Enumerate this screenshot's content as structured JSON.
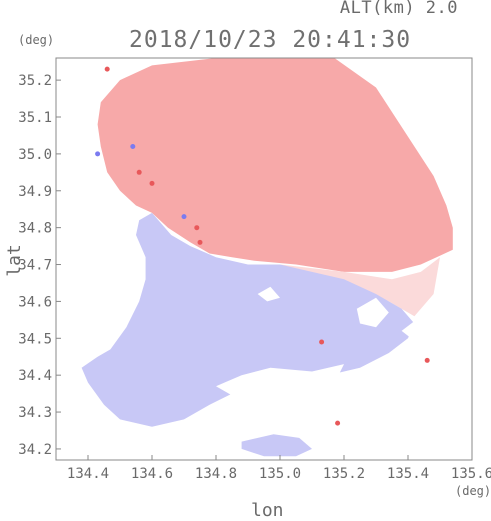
{
  "chart_data": {
    "type": "heatmap",
    "title": "2018/10/23 20:41:30",
    "subtitle": "ALT(km) 2.0",
    "xlabel": "lon",
    "ylabel": "lat",
    "xunit": "(deg)",
    "yunit": "(deg)",
    "xlim": [
      134.3,
      135.6
    ],
    "ylim": [
      34.17,
      35.26
    ],
    "xticks": [
      "134.4",
      "134.6",
      "134.8",
      "135.0",
      "135.2",
      "135.4",
      "135.6"
    ],
    "yticks": [
      "34.2",
      "34.3",
      "34.4",
      "34.5",
      "34.6",
      "34.7",
      "34.8",
      "34.9",
      "35.0",
      "35.1",
      "35.2"
    ],
    "colors": {
      "positive": "#f7a9a9",
      "weak_positive": "#fbdada",
      "negative": "#c8c8f6",
      "weak_negative": "#e4e4fb",
      "strong_positive": "#e8585a",
      "strong_negative": "#7b7bf0"
    },
    "regions": [
      {
        "sign": "positive",
        "polygon": [
          [
            134.44,
            35.14
          ],
          [
            134.5,
            35.2
          ],
          [
            134.6,
            35.24
          ],
          [
            134.8,
            35.26
          ],
          [
            135.0,
            35.26
          ],
          [
            135.17,
            35.26
          ],
          [
            135.3,
            35.18
          ],
          [
            135.36,
            35.1
          ],
          [
            135.42,
            35.02
          ],
          [
            135.48,
            34.94
          ],
          [
            135.52,
            34.86
          ],
          [
            135.54,
            34.8
          ],
          [
            135.54,
            34.74
          ],
          [
            135.44,
            34.7
          ],
          [
            135.35,
            34.68
          ],
          [
            135.2,
            34.68
          ],
          [
            135.05,
            34.7
          ],
          [
            134.92,
            34.71
          ],
          [
            134.85,
            34.72
          ],
          [
            134.78,
            34.73
          ],
          [
            134.72,
            34.76
          ],
          [
            134.65,
            34.8
          ],
          [
            134.6,
            34.84
          ],
          [
            134.55,
            34.86
          ],
          [
            134.5,
            34.9
          ],
          [
            134.46,
            34.95
          ],
          [
            134.44,
            35.02
          ],
          [
            134.43,
            35.08
          ]
        ]
      },
      {
        "sign": "weak_positive",
        "polygon": [
          [
            135.0,
            34.7
          ],
          [
            135.2,
            34.68
          ],
          [
            135.35,
            34.66
          ],
          [
            135.44,
            34.68
          ],
          [
            135.5,
            34.72
          ],
          [
            135.48,
            34.62
          ],
          [
            135.42,
            34.56
          ],
          [
            135.34,
            34.6
          ],
          [
            135.24,
            34.64
          ],
          [
            135.12,
            34.66
          ]
        ]
      },
      {
        "sign": "negative",
        "polygon": [
          [
            134.6,
            34.84
          ],
          [
            134.66,
            34.78
          ],
          [
            134.72,
            34.75
          ],
          [
            134.8,
            34.72
          ],
          [
            134.9,
            34.7
          ],
          [
            135.0,
            34.7
          ],
          [
            135.1,
            34.68
          ],
          [
            135.2,
            34.66
          ],
          [
            135.3,
            34.62
          ],
          [
            135.38,
            34.58
          ],
          [
            135.42,
            34.54
          ],
          [
            135.4,
            34.5
          ],
          [
            135.34,
            34.46
          ],
          [
            135.25,
            34.42
          ],
          [
            135.15,
            34.4
          ],
          [
            135.05,
            34.38
          ],
          [
            134.98,
            34.4
          ],
          [
            134.9,
            34.38
          ],
          [
            134.85,
            34.35
          ],
          [
            134.78,
            34.32
          ],
          [
            134.7,
            34.28
          ],
          [
            134.6,
            34.26
          ],
          [
            134.5,
            34.28
          ],
          [
            134.45,
            34.32
          ],
          [
            134.4,
            34.38
          ],
          [
            134.38,
            34.42
          ],
          [
            134.43,
            34.45
          ],
          [
            134.47,
            34.47
          ],
          [
            134.52,
            34.53
          ],
          [
            134.56,
            34.6
          ],
          [
            134.58,
            34.66
          ],
          [
            134.58,
            34.72
          ],
          [
            134.55,
            34.78
          ],
          [
            134.56,
            34.82
          ]
        ]
      },
      {
        "sign": "negative",
        "polygon": [
          [
            134.88,
            34.22
          ],
          [
            134.98,
            34.24
          ],
          [
            135.06,
            34.23
          ],
          [
            135.1,
            34.2
          ],
          [
            135.05,
            34.18
          ],
          [
            134.95,
            34.18
          ],
          [
            134.88,
            34.2
          ]
        ]
      }
    ],
    "holes": [
      [
        [
          134.8,
          34.37
        ],
        [
          134.88,
          34.4
        ],
        [
          134.97,
          34.42
        ],
        [
          135.1,
          34.41
        ],
        [
          135.2,
          34.43
        ],
        [
          135.16,
          34.36
        ],
        [
          135.08,
          34.33
        ],
        [
          134.96,
          34.34
        ],
        [
          134.86,
          34.34
        ]
      ],
      [
        [
          135.24,
          34.58
        ],
        [
          135.3,
          34.61
        ],
        [
          135.34,
          34.57
        ],
        [
          135.3,
          34.53
        ],
        [
          135.25,
          34.54
        ]
      ],
      [
        [
          134.93,
          34.62
        ],
        [
          134.97,
          34.64
        ],
        [
          135.0,
          34.61
        ],
        [
          134.96,
          34.6
        ]
      ],
      [
        [
          135.38,
          34.52
        ],
        [
          135.44,
          34.56
        ],
        [
          135.48,
          34.52
        ],
        [
          135.44,
          34.48
        ]
      ]
    ],
    "spots": [
      {
        "lon": 134.46,
        "lat": 35.23,
        "sign": "strong_positive"
      },
      {
        "lon": 134.54,
        "lat": 35.02,
        "sign": "strong_negative"
      },
      {
        "lon": 134.56,
        "lat": 34.95,
        "sign": "strong_positive"
      },
      {
        "lon": 134.6,
        "lat": 34.92,
        "sign": "strong_positive"
      },
      {
        "lon": 134.7,
        "lat": 34.83,
        "sign": "strong_negative"
      },
      {
        "lon": 134.74,
        "lat": 34.8,
        "sign": "strong_positive"
      },
      {
        "lon": 134.75,
        "lat": 34.76,
        "sign": "strong_positive"
      },
      {
        "lon": 135.13,
        "lat": 34.49,
        "sign": "strong_positive"
      },
      {
        "lon": 135.46,
        "lat": 34.44,
        "sign": "strong_positive"
      },
      {
        "lon": 135.18,
        "lat": 34.27,
        "sign": "strong_positive"
      },
      {
        "lon": 134.43,
        "lat": 35.0,
        "sign": "strong_negative"
      }
    ]
  }
}
